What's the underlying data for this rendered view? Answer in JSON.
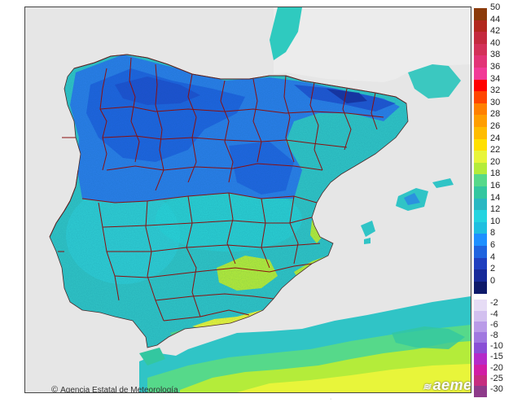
{
  "map": {
    "credit": "Agencia Estatal de Meteorología",
    "brand": "aemet",
    "colors": {
      "sea": "#e6e6e6",
      "africa": "#e4e4e4",
      "france": "#ececec",
      "border": "#8a1010",
      "land_base": "#30c4c6"
    }
  },
  "legend": {
    "positive": [
      {
        "label": "50",
        "color": "#8b3a0a"
      },
      {
        "label": "44",
        "color": "#b2281e"
      },
      {
        "label": "42",
        "color": "#c42a3e"
      },
      {
        "label": "40",
        "color": "#d33158"
      },
      {
        "label": "38",
        "color": "#e23476"
      },
      {
        "label": "36",
        "color": "#f13a97"
      },
      {
        "label": "34",
        "color": "#ff0000"
      },
      {
        "label": "32",
        "color": "#ff4500"
      },
      {
        "label": "30",
        "color": "#ff8000"
      },
      {
        "label": "28",
        "color": "#ff9e00"
      },
      {
        "label": "26",
        "color": "#ffbc00"
      },
      {
        "label": "24",
        "color": "#ffe000"
      },
      {
        "label": "22",
        "color": "#e8f53a"
      },
      {
        "label": "20",
        "color": "#b4ec3a"
      },
      {
        "label": "18",
        "color": "#56d98a"
      },
      {
        "label": "16",
        "color": "#33c7a0"
      },
      {
        "label": "14",
        "color": "#2ab8c2"
      },
      {
        "label": "12",
        "color": "#25d4e0"
      },
      {
        "label": "10",
        "color": "#20bfe0"
      },
      {
        "label": "8",
        "color": "#1e90ff"
      },
      {
        "label": "6",
        "color": "#1f64df"
      },
      {
        "label": "4",
        "color": "#1f3fbf"
      },
      {
        "label": "2",
        "color": "#172a99"
      },
      {
        "label": "0",
        "color": "#0e1a6a"
      }
    ],
    "negative": [
      {
        "label": "-2",
        "color": "#e6dcf5"
      },
      {
        "label": "-4",
        "color": "#d2c0ef"
      },
      {
        "label": "-6",
        "color": "#b99be8"
      },
      {
        "label": "-8",
        "color": "#a078e0"
      },
      {
        "label": "-10",
        "color": "#8a4fd6"
      },
      {
        "label": "-15",
        "color": "#b52bc9"
      },
      {
        "label": "-20",
        "color": "#d11ea5"
      },
      {
        "label": "-25",
        "color": "#c62d80"
      },
      {
        "label": "-30",
        "color": "#8e3a8a"
      }
    ]
  }
}
